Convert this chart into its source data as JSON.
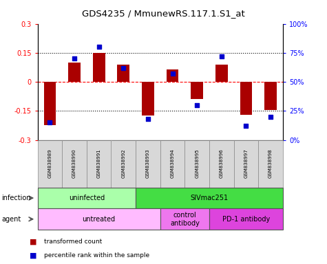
{
  "title": "GDS4235 / MmunewRS.117.1.S1_at",
  "samples": [
    "GSM838989",
    "GSM838990",
    "GSM838991",
    "GSM838992",
    "GSM838993",
    "GSM838994",
    "GSM838995",
    "GSM838996",
    "GSM838997",
    "GSM838998"
  ],
  "bar_values": [
    -0.225,
    0.1,
    0.15,
    0.09,
    -0.175,
    0.065,
    -0.09,
    0.09,
    -0.17,
    -0.145
  ],
  "dot_values": [
    15,
    70,
    80,
    62,
    18,
    57,
    30,
    72,
    12,
    20
  ],
  "bar_color": "#aa0000",
  "dot_color": "#0000cc",
  "ylim_left": [
    -0.3,
    0.3
  ],
  "ylim_right": [
    0,
    100
  ],
  "yticks_left": [
    -0.3,
    -0.15,
    0.0,
    0.15,
    0.3
  ],
  "ytick_labels_left": [
    "-0.3",
    "-0.15",
    "0",
    "0.15",
    "0.3"
  ],
  "yticks_right": [
    0,
    25,
    50,
    75,
    100
  ],
  "ytick_labels_right": [
    "0%",
    "25%",
    "50%",
    "75%",
    "100%"
  ],
  "infection_labels": [
    {
      "text": "uninfected",
      "start": 0,
      "end": 3,
      "color": "#aaffaa"
    },
    {
      "text": "SIVmac251",
      "start": 4,
      "end": 9,
      "color": "#44dd44"
    }
  ],
  "agent_labels": [
    {
      "text": "untreated",
      "start": 0,
      "end": 4,
      "color": "#ffbbff"
    },
    {
      "text": "control\nantibody",
      "start": 5,
      "end": 6,
      "color": "#ee77ee"
    },
    {
      "text": "PD-1 antibody",
      "start": 7,
      "end": 9,
      "color": "#dd44dd"
    }
  ],
  "legend_items": [
    {
      "label": "transformed count",
      "color": "#aa0000"
    },
    {
      "label": "percentile rank within the sample",
      "color": "#0000cc"
    }
  ],
  "background_color": "#ffffff",
  "fig_width": 4.75,
  "fig_height": 3.84,
  "dpi": 100
}
